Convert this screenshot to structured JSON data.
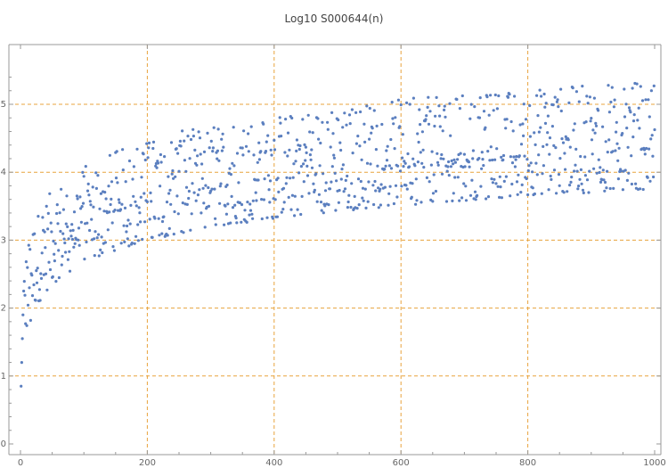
{
  "chart_data": {
    "type": "scatter",
    "title": "Log10 S000644(n)",
    "xlabel": "",
    "ylabel": "",
    "xlim": [
      0,
      1000
    ],
    "ylim": [
      0,
      5.6
    ],
    "x_ticks": [
      0,
      200,
      400,
      600,
      800,
      1000
    ],
    "y_ticks": [
      0,
      1,
      2,
      3,
      4,
      5
    ],
    "x_gridlines": [
      200,
      400,
      600,
      800
    ],
    "y_gridlines": [
      1,
      2,
      3,
      4,
      5
    ],
    "grid": true,
    "legend": "none",
    "n_points": 1000,
    "colors": {
      "point": "#5B7FBF",
      "grid": "#E8A33D",
      "axis": "#999999",
      "tick_label": "#666666",
      "title": "#444444"
    },
    "series": [
      {
        "values_estimated_by_band": [
          {
            "x_range": [
              1,
              10
            ],
            "y_range": [
              0.5,
              2.3
            ]
          },
          {
            "x_range": [
              10,
              100
            ],
            "y_range": [
              1.9,
              4.2
            ]
          },
          {
            "x_range": [
              100,
              200
            ],
            "y_range": [
              2.2,
              4.7
            ]
          },
          {
            "x_range": [
              200,
              400
            ],
            "y_range": [
              2.6,
              5.0
            ]
          },
          {
            "x_range": [
              400,
              600
            ],
            "y_range": [
              2.9,
              5.4
            ]
          },
          {
            "x_range": [
              600,
              800
            ],
            "y_range": [
              3.1,
              5.4
            ]
          },
          {
            "x_range": [
              800,
              1000
            ],
            "y_range": [
              3.2,
              5.6
            ]
          }
        ]
      }
    ]
  }
}
